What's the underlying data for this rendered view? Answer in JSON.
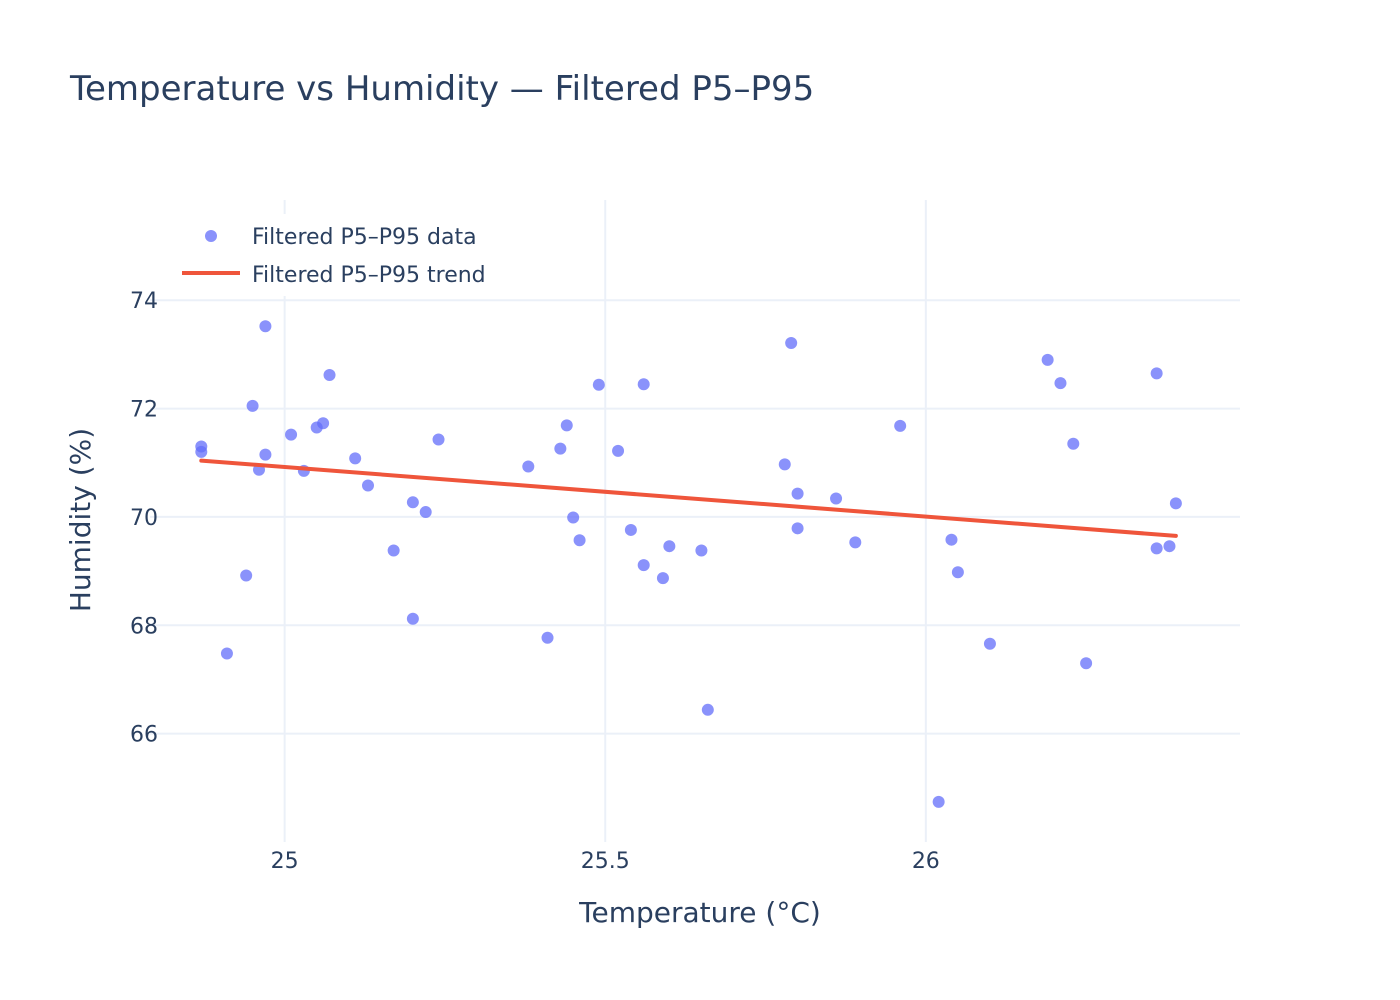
{
  "chart_data": {
    "type": "scatter",
    "title": "Temperature vs Humidity — Filtered P5–P95",
    "xlabel": "Temperature (°C)",
    "ylabel": "Humidity (%)",
    "xlim": [
      24.79,
      26.49
    ],
    "ylim": [
      64.0,
      75.85
    ],
    "x_ticks": [
      25,
      25.5,
      26
    ],
    "x_tick_labels": [
      "25",
      "25.5",
      "26"
    ],
    "y_ticks": [
      66,
      68,
      70,
      72,
      74
    ],
    "y_tick_labels": [
      "66",
      "68",
      "70",
      "72",
      "74"
    ],
    "grid": true,
    "legend_position": "top-left",
    "series": [
      {
        "name": "Filtered P5–P95 data",
        "type": "scatter",
        "color": "#636efa",
        "points": [
          [
            24.87,
            71.3
          ],
          [
            24.87,
            71.2
          ],
          [
            24.91,
            67.48
          ],
          [
            24.94,
            68.92
          ],
          [
            24.95,
            72.05
          ],
          [
            24.96,
            70.87
          ],
          [
            24.97,
            73.52
          ],
          [
            24.97,
            71.15
          ],
          [
            25.01,
            71.52
          ],
          [
            25.03,
            70.85
          ],
          [
            25.05,
            71.65
          ],
          [
            25.06,
            71.73
          ],
          [
            25.07,
            72.62
          ],
          [
            25.11,
            71.08
          ],
          [
            25.13,
            70.58
          ],
          [
            25.17,
            69.38
          ],
          [
            25.2,
            70.27
          ],
          [
            25.2,
            68.12
          ],
          [
            25.22,
            70.09
          ],
          [
            25.24,
            71.43
          ],
          [
            25.38,
            70.93
          ],
          [
            25.41,
            67.77
          ],
          [
            25.43,
            71.26
          ],
          [
            25.44,
            71.69
          ],
          [
            25.45,
            69.99
          ],
          [
            25.46,
            69.57
          ],
          [
            25.49,
            72.44
          ],
          [
            25.52,
            71.22
          ],
          [
            25.54,
            69.76
          ],
          [
            25.56,
            72.45
          ],
          [
            25.56,
            69.11
          ],
          [
            25.59,
            68.87
          ],
          [
            25.6,
            69.46
          ],
          [
            25.65,
            69.38
          ],
          [
            25.66,
            66.44
          ],
          [
            25.78,
            70.97
          ],
          [
            25.79,
            73.21
          ],
          [
            25.8,
            70.43
          ],
          [
            25.8,
            69.79
          ],
          [
            25.86,
            70.34
          ],
          [
            25.89,
            69.53
          ],
          [
            25.96,
            71.68
          ],
          [
            26.02,
            64.74
          ],
          [
            26.04,
            69.58
          ],
          [
            26.05,
            68.98
          ],
          [
            26.1,
            67.66
          ],
          [
            26.19,
            72.9
          ],
          [
            26.21,
            72.47
          ],
          [
            26.23,
            71.35
          ],
          [
            26.25,
            67.3
          ],
          [
            26.36,
            72.65
          ],
          [
            26.36,
            69.42
          ],
          [
            26.38,
            69.46
          ],
          [
            26.39,
            70.25
          ]
        ]
      },
      {
        "name": "Filtered P5–P95 trend",
        "type": "line",
        "color": "#ef553b",
        "points": [
          [
            24.87,
            71.04
          ],
          [
            26.39,
            69.65
          ]
        ]
      }
    ]
  }
}
